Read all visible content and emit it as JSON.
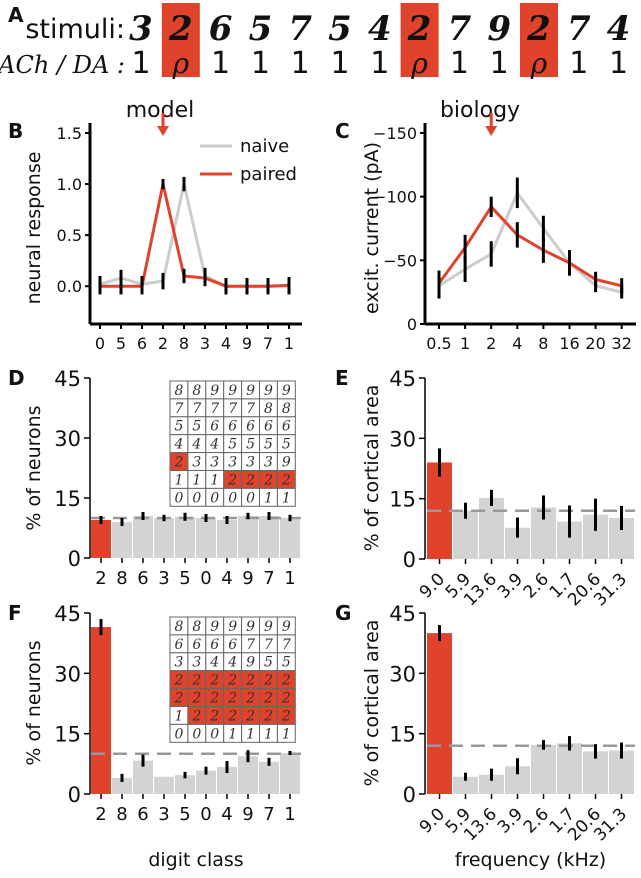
{
  "colors": {
    "paired": "#e0432c",
    "naive": "#cccccc",
    "bar": "#d3d3d3",
    "chance": "#999999",
    "error": "#000000"
  },
  "panel_a": {
    "label": "A",
    "stimuli_label": "stimuli:",
    "mod_label": "ACh / DA :",
    "stimuli": [
      "3",
      "2",
      "6",
      "5",
      "7",
      "5",
      "4",
      "2",
      "7",
      "9",
      "2",
      "7",
      "4"
    ],
    "modulation": [
      "1",
      "ρ",
      "1",
      "1",
      "1",
      "1",
      "1",
      "ρ",
      "1",
      "1",
      "ρ",
      "1",
      "1"
    ],
    "paired_positions": [
      1,
      7,
      10
    ]
  },
  "column_titles": {
    "model": "model",
    "biology": "biology"
  },
  "chart_data": [
    {
      "id": "B",
      "label": "B",
      "type": "line",
      "categories": [
        "0",
        "5",
        "6",
        "2",
        "8",
        "3",
        "4",
        "9",
        "7",
        "1"
      ],
      "ylabel": "neural response",
      "ylim": [
        -0.37,
        1.5
      ],
      "yticks": [
        "0.0",
        "0.5",
        "1.0",
        "1.5"
      ],
      "arrow_at": "2",
      "legend": {
        "placement": "top-right"
      },
      "series": [
        {
          "name": "naive",
          "color": "#cccccc",
          "values": [
            0.02,
            0.08,
            0.02,
            0.05,
            1.0,
            0.1,
            0.0,
            0.0,
            0.0,
            0.0
          ],
          "errors": [
            0.08,
            0.08,
            0.08,
            0.08,
            0.07,
            0.08,
            0.08,
            0.08,
            0.08,
            0.08
          ]
        },
        {
          "name": "paired",
          "color": "#e0432c",
          "values": [
            0.0,
            0.0,
            0.0,
            1.0,
            0.1,
            0.08,
            0.0,
            0.0,
            0.0,
            0.01
          ],
          "errors": [
            0.08,
            0.08,
            0.08,
            0.05,
            0.07,
            0.08,
            0.08,
            0.08,
            0.08,
            0.08
          ]
        }
      ]
    },
    {
      "id": "C",
      "label": "C",
      "type": "line",
      "categories": [
        "0.5",
        "1",
        "2",
        "4",
        "8",
        "16",
        "20",
        "32"
      ],
      "ylabel": "excit. current (pA)",
      "ylim": [
        0,
        -150
      ],
      "yticks": [
        "0",
        "−50",
        "−100",
        "−150"
      ],
      "arrow_at": "2",
      "series": [
        {
          "name": "naive",
          "color": "#cccccc",
          "values": [
            -30,
            -43,
            -55,
            -103,
            -75,
            -48,
            -30,
            -25
          ],
          "errors": [
            10,
            10,
            10,
            12,
            10,
            10,
            5,
            5
          ]
        },
        {
          "name": "paired",
          "color": "#e0432c",
          "values": [
            -32,
            -60,
            -92,
            -70,
            -58,
            -48,
            -35,
            -30
          ],
          "errors": [
            10,
            10,
            8,
            10,
            10,
            10,
            6,
            6
          ]
        }
      ]
    },
    {
      "id": "D",
      "label": "D",
      "type": "bar",
      "categories": [
        "2",
        "8",
        "6",
        "3",
        "5",
        "0",
        "4",
        "9",
        "7",
        "1"
      ],
      "values": [
        9.5,
        9,
        10.5,
        10,
        10.3,
        10,
        9.5,
        10.5,
        10.5,
        10
      ],
      "errors": [
        1,
        1,
        1,
        0.8,
        1,
        1,
        1,
        0.8,
        1,
        0.8
      ],
      "highlight": [
        0
      ],
      "chance": 10,
      "ylabel": "% of neurons",
      "ylim": [
        0,
        45
      ],
      "yticks": [
        "0",
        "15",
        "30",
        "45"
      ],
      "inset": {
        "rows": [
          [
            "8",
            "8",
            "9",
            "9",
            "9",
            "9",
            "9"
          ],
          [
            "7",
            "7",
            "7",
            "7",
            "7",
            "8",
            "8"
          ],
          [
            "5",
            "5",
            "6",
            "6",
            "6",
            "6",
            "6"
          ],
          [
            "4",
            "4",
            "4",
            "5",
            "5",
            "5",
            "5"
          ],
          [
            "2",
            "3",
            "3",
            "3",
            "3",
            "3",
            "9"
          ],
          [
            "1",
            "1",
            "1",
            "2",
            "2",
            "2",
            "2"
          ],
          [
            "0",
            "0",
            "0",
            "0",
            "0",
            "1",
            "1"
          ]
        ],
        "highlight": [
          [
            4,
            0
          ],
          [
            5,
            3
          ],
          [
            5,
            4
          ],
          [
            5,
            5
          ],
          [
            5,
            6
          ]
        ]
      }
    },
    {
      "id": "E",
      "label": "E",
      "type": "bar",
      "categories": [
        "9.0",
        "5.9",
        "13.6",
        "3.9",
        "2.6",
        "1.7",
        "20.6",
        "31.3"
      ],
      "values": [
        24,
        12,
        15.2,
        7.8,
        12.8,
        9.3,
        11,
        10.2
      ],
      "errors": [
        3.5,
        2,
        2,
        2.5,
        3,
        4,
        4,
        3
      ],
      "highlight": [
        0
      ],
      "chance": 12,
      "ylabel": "% of cortical area",
      "ylim": [
        0,
        45
      ],
      "yticks": [
        "0",
        "15",
        "30",
        "45"
      ]
    },
    {
      "id": "F",
      "label": "F",
      "type": "bar",
      "categories": [
        "2",
        "8",
        "6",
        "3",
        "5",
        "0",
        "4",
        "9",
        "7",
        "1"
      ],
      "values": [
        41.5,
        4,
        8.3,
        4.3,
        4.7,
        5.8,
        6.7,
        9.4,
        8,
        10.2
      ],
      "errors": [
        2,
        1,
        1.5,
        0,
        0.8,
        1,
        1.5,
        1.5,
        1,
        0.5
      ],
      "highlight": [
        0
      ],
      "chance": 10,
      "xlabel": "digit class",
      "ylabel": "% of neurons",
      "ylim": [
        0,
        45
      ],
      "yticks": [
        "0",
        "15",
        "30",
        "45"
      ],
      "inset": {
        "rows": [
          [
            "8",
            "8",
            "9",
            "9",
            "9",
            "9",
            "9"
          ],
          [
            "6",
            "6",
            "6",
            "6",
            "7",
            "7",
            "7"
          ],
          [
            "3",
            "3",
            "4",
            "4",
            "9",
            "5",
            "5"
          ],
          [
            "2",
            "2",
            "2",
            "2",
            "2",
            "2",
            "2"
          ],
          [
            "2",
            "2",
            "2",
            "2",
            "2",
            "2",
            "2"
          ],
          [
            "1",
            "2",
            "2",
            "2",
            "2",
            "2",
            "2"
          ],
          [
            "0",
            "0",
            "0",
            "1",
            "1",
            "1",
            "1"
          ]
        ],
        "highlight": [
          [
            3,
            0
          ],
          [
            3,
            1
          ],
          [
            3,
            2
          ],
          [
            3,
            3
          ],
          [
            3,
            4
          ],
          [
            3,
            5
          ],
          [
            3,
            6
          ],
          [
            4,
            0
          ],
          [
            4,
            1
          ],
          [
            4,
            2
          ],
          [
            4,
            3
          ],
          [
            4,
            4
          ],
          [
            4,
            5
          ],
          [
            4,
            6
          ],
          [
            5,
            1
          ],
          [
            5,
            2
          ],
          [
            5,
            3
          ],
          [
            5,
            4
          ],
          [
            5,
            5
          ],
          [
            5,
            6
          ]
        ]
      }
    },
    {
      "id": "G",
      "label": "G",
      "type": "bar",
      "categories": [
        "9.0",
        "5.9",
        "13.6",
        "3.9",
        "2.6",
        "1.7",
        "20.6",
        "31.3"
      ],
      "values": [
        40,
        4.3,
        4.8,
        6.9,
        12.2,
        12.6,
        10.6,
        10.8
      ],
      "errors": [
        2,
        1,
        1.5,
        2,
        1.2,
        1.8,
        1.8,
        2
      ],
      "highlight": [
        0
      ],
      "chance": 12,
      "xlabel": "frequency (kHz)",
      "ylabel": "% of cortical area",
      "ylim": [
        0,
        45
      ],
      "yticks": [
        "0",
        "15",
        "30",
        "45"
      ]
    }
  ]
}
